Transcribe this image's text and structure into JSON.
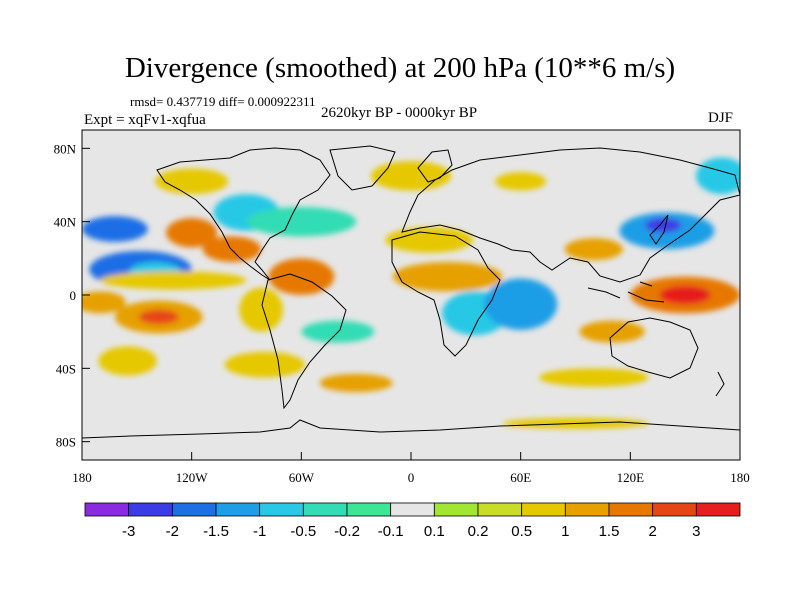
{
  "title": "Divergence (smoothed) at 200 hPa (10**6 m/s)",
  "stats": "rmsd= 0.437719  diff= 0.000922311",
  "experiment": "Expt = xqFv1-xqfua",
  "period": "2620kyr BP - 0000kyr BP",
  "season": "DJF",
  "map": {
    "lat_ticks": [
      "80N",
      "40N",
      "0",
      "40S",
      "80S"
    ],
    "lon_ticks": [
      "180",
      "120W",
      "60W",
      "0",
      "60E",
      "120E",
      "180"
    ],
    "background_color": "#e6e6e6",
    "field_blobs": [
      {
        "lon": -162,
        "lat": 36,
        "rx": 18,
        "ry": 7,
        "level": 2
      },
      {
        "lon": -148,
        "lat": 14,
        "rx": 28,
        "ry": 10,
        "level": 2
      },
      {
        "lon": -140,
        "lat": 13,
        "rx": 14,
        "ry": 5,
        "level": 4
      },
      {
        "lon": -170,
        "lat": -4,
        "rx": 14,
        "ry": 6,
        "level": 11
      },
      {
        "lon": -138,
        "lat": -12,
        "rx": 24,
        "ry": 9,
        "level": 11
      },
      {
        "lon": -138,
        "lat": -12,
        "rx": 11,
        "ry": 4,
        "level": 13
      },
      {
        "lon": -155,
        "lat": -36,
        "rx": 16,
        "ry": 8,
        "level": 10
      },
      {
        "lon": -120,
        "lat": 34,
        "rx": 14,
        "ry": 8,
        "level": 12
      },
      {
        "lon": -98,
        "lat": 25,
        "rx": 16,
        "ry": 7,
        "level": 12
      },
      {
        "lon": -90,
        "lat": 45,
        "rx": 18,
        "ry": 10,
        "level": 4
      },
      {
        "lon": -60,
        "lat": 40,
        "rx": 30,
        "ry": 8,
        "level": 5
      },
      {
        "lon": -120,
        "lat": 62,
        "rx": 20,
        "ry": 7,
        "level": 10
      },
      {
        "lon": -130,
        "lat": 8,
        "rx": 40,
        "ry": 5,
        "level": 10
      },
      {
        "lon": -82,
        "lat": -8,
        "rx": 12,
        "ry": 12,
        "level": 10
      },
      {
        "lon": -60,
        "lat": 10,
        "rx": 18,
        "ry": 10,
        "level": 12
      },
      {
        "lon": -40,
        "lat": -20,
        "rx": 20,
        "ry": 6,
        "level": 5
      },
      {
        "lon": -80,
        "lat": -38,
        "rx": 22,
        "ry": 7,
        "level": 10
      },
      {
        "lon": 20,
        "lat": 10,
        "rx": 30,
        "ry": 8,
        "level": 11
      },
      {
        "lon": 10,
        "lat": 30,
        "rx": 24,
        "ry": 7,
        "level": 10
      },
      {
        "lon": 0,
        "lat": 65,
        "rx": 22,
        "ry": 8,
        "level": 10
      },
      {
        "lon": 35,
        "lat": -10,
        "rx": 18,
        "ry": 12,
        "level": 4
      },
      {
        "lon": 60,
        "lat": -5,
        "rx": 20,
        "ry": 14,
        "level": 3
      },
      {
        "lon": 100,
        "lat": 25,
        "rx": 16,
        "ry": 6,
        "level": 11
      },
      {
        "lon": 140,
        "lat": 35,
        "rx": 26,
        "ry": 10,
        "level": 3
      },
      {
        "lon": 138,
        "lat": 38,
        "rx": 10,
        "ry": 4,
        "level": 1
      },
      {
        "lon": 150,
        "lat": 0,
        "rx": 30,
        "ry": 10,
        "level": 12
      },
      {
        "lon": 150,
        "lat": 0,
        "rx": 14,
        "ry": 5,
        "level": 14
      },
      {
        "lon": 110,
        "lat": -20,
        "rx": 18,
        "ry": 6,
        "level": 11
      },
      {
        "lon": 170,
        "lat": 65,
        "rx": 14,
        "ry": 10,
        "level": 4
      },
      {
        "lon": 60,
        "lat": 62,
        "rx": 14,
        "ry": 5,
        "level": 10
      },
      {
        "lon": 100,
        "lat": -45,
        "rx": 30,
        "ry": 5,
        "level": 10
      },
      {
        "lon": -30,
        "lat": -48,
        "rx": 20,
        "ry": 5,
        "level": 11
      },
      {
        "lon": 90,
        "lat": -70,
        "rx": 40,
        "ry": 3,
        "level": 10
      }
    ]
  },
  "colorbar": {
    "labels": [
      "-3",
      "-2",
      "-1.5",
      "-1",
      "-0.5",
      "-0.2",
      "-0.1",
      "0.1",
      "0.2",
      "0.5",
      "1",
      "1.5",
      "2",
      "3"
    ],
    "colors": [
      "#8a2be2",
      "#3c3ce6",
      "#1e6ee6",
      "#1e9ee6",
      "#28c8e6",
      "#32dcb4",
      "#3ce696",
      "#e6e6e6",
      "#a0e632",
      "#c8dc28",
      "#e6c800",
      "#e6a000",
      "#e67800",
      "#e64614",
      "#e61e1e"
    ]
  }
}
